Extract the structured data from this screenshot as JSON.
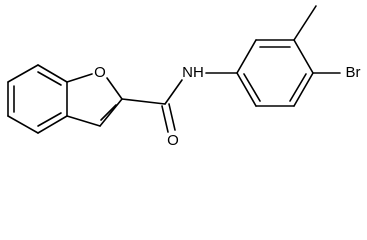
{
  "molecule": {
    "atoms": [
      "O",
      "NH",
      "O",
      "Br"
    ]
  }
}
